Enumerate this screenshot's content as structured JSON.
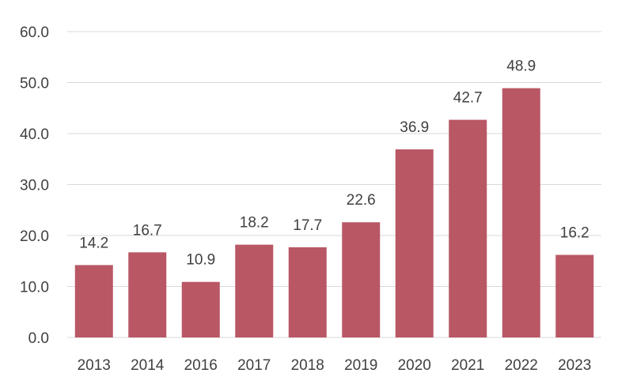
{
  "chart_data": {
    "type": "bar",
    "title": "",
    "xlabel": "",
    "ylabel": "",
    "categories": [
      "2013",
      "2014",
      "2016",
      "2017",
      "2018",
      "2019",
      "2020",
      "2021",
      "2022",
      "2023"
    ],
    "values": [
      14.2,
      16.7,
      10.9,
      18.2,
      17.7,
      22.6,
      36.9,
      42.7,
      48.9,
      16.2
    ],
    "value_labels": [
      "14.2",
      "16.7",
      "10.9",
      "18.2",
      "17.7",
      "22.6",
      "36.9",
      "42.7",
      "48.9",
      "16.2"
    ],
    "ylim": [
      0,
      60
    ],
    "yticks": [
      "0.0",
      "10.0",
      "20.0",
      "30.0",
      "40.0",
      "50.0",
      "60.0"
    ],
    "grid": true,
    "legend": "none",
    "colors": {
      "bar": "#b95765",
      "grid": "#d9d9d9",
      "text": "#404040"
    }
  }
}
